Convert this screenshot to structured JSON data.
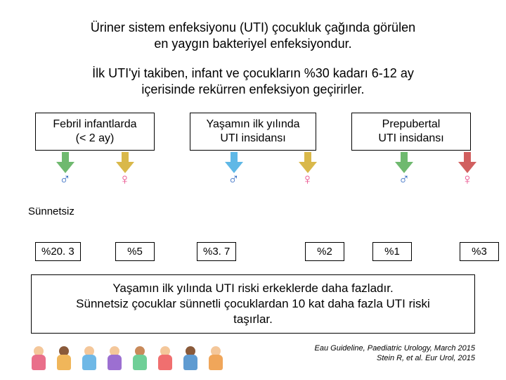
{
  "title_line1": "Üriner sistem enfeksiyonu (UTI) çocukluk çağında görülen",
  "title_line2": "en yaygın bakteriyel enfeksiyondur.",
  "subtitle_line1": "İlk UTI'yi takiben, infant ve çocukların %30 kadarı 6-12 ay",
  "subtitle_line2": "içerisinde rekürren enfeksiyon geçirirler.",
  "box1_line1": "Febril infantlarda",
  "box1_line2": "(< 2 ay)",
  "box2_line1": "Yaşamın ilk yılında",
  "box2_line2": "UTI insidansı",
  "box3_line1": "Prepubertal",
  "box3_line2": "UTI insidansı",
  "sunnetsiz_label": "Sünnetsiz",
  "arrow_colors": {
    "g1a": "#6fb96f",
    "g1b": "#d9b84a",
    "g2a": "#5fb8e6",
    "g2b": "#d9b84a",
    "g3a": "#6fb96f",
    "g3b": "#d15f5f"
  },
  "male_symbol": "♂",
  "female_symbol": "♀",
  "pct": {
    "g1m": "%20. 3",
    "g1f": "%5",
    "g2m": "%3. 7",
    "g2f": "%2",
    "g3m": "%1",
    "g3f": "%3"
  },
  "summary_line1": "Yaşamın ilk yılında UTI riski erkeklerde daha fazladır.",
  "summary_line2": "Sünnetsiz çocuklar sünnetli çocuklardan 10 kat daha fazla UTI riski",
  "summary_line3": "taşırlar.",
  "citation_line1": "Eau Guideline, Paediatric Urology, March 2015",
  "citation_line2": "Stein R, et al. Eur Urol, 2015",
  "kids": [
    {
      "skin": "#f4c79a",
      "shirt": "#e96f8a"
    },
    {
      "skin": "#8a5a3a",
      "shirt": "#f0b65a"
    },
    {
      "skin": "#f4c79a",
      "shirt": "#6fb8e6"
    },
    {
      "skin": "#f4c79a",
      "shirt": "#9c6fd1"
    },
    {
      "skin": "#c98a5a",
      "shirt": "#6fcf97"
    },
    {
      "skin": "#f4c79a",
      "shirt": "#f06f6f"
    },
    {
      "skin": "#8a5a3a",
      "shirt": "#5f9bd1"
    },
    {
      "skin": "#f4c79a",
      "shirt": "#f0a65a"
    }
  ]
}
